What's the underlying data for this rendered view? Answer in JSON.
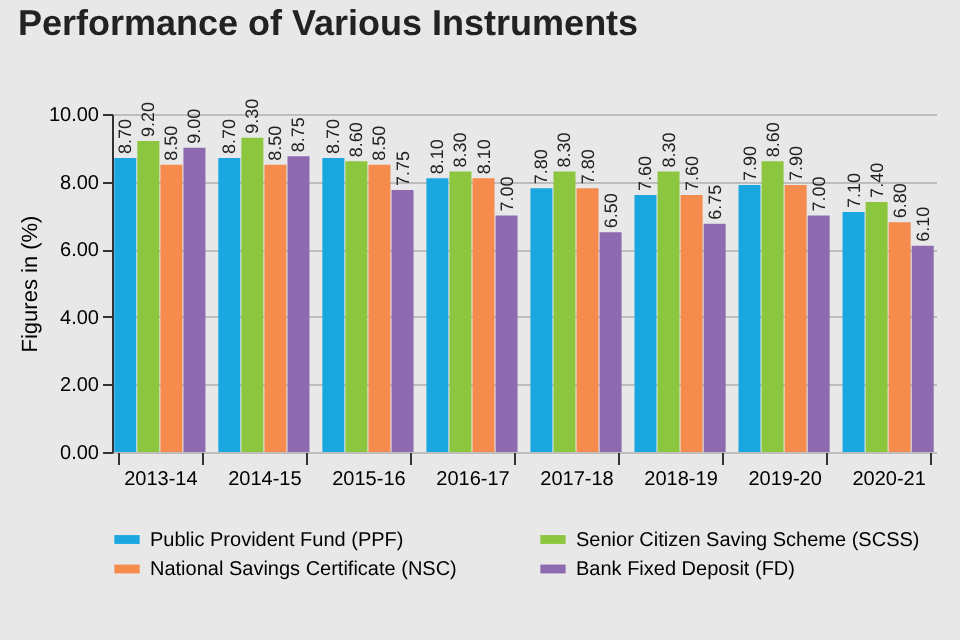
{
  "chart_data": {
    "type": "bar",
    "title": "Performance of Various Instruments",
    "ylabel": "Figures in (%)",
    "categories": [
      "2013-14",
      "2014-15",
      "2015-16",
      "2016-17",
      "2017-18",
      "2018-19",
      "2019-20",
      "2020-21"
    ],
    "series": [
      {
        "name": "Public Provident Fund (PPF)",
        "color": "#1aa7e0",
        "values": [
          8.7,
          8.7,
          8.7,
          8.1,
          7.8,
          7.6,
          7.9,
          7.1
        ],
        "value_labels": [
          "8.70",
          "8.70",
          "8.70",
          "8.10",
          "7.80",
          "7.60",
          "7.90",
          "7.10"
        ]
      },
      {
        "name": "Senior Citizen Saving Scheme (SCSS)",
        "color": "#8cc63f",
        "values": [
          9.2,
          9.3,
          8.6,
          8.3,
          8.3,
          8.3,
          8.6,
          7.4
        ],
        "value_labels": [
          "9.20",
          "9.30",
          "8.60",
          "8.30",
          "8.30",
          "8.30",
          "8.60",
          "7.40"
        ]
      },
      {
        "name": "National Savings Certificate (NSC)",
        "color": "#f58b4c",
        "values": [
          8.5,
          8.5,
          8.5,
          8.1,
          7.8,
          7.6,
          7.9,
          6.8
        ],
        "value_labels": [
          "8.50",
          "8.50",
          "8.50",
          "8.10",
          "7.80",
          "7.60",
          "7.90",
          "6.80"
        ]
      },
      {
        "name": "Bank Fixed Deposit (FD)",
        "color": "#8e6bb0",
        "values": [
          9.0,
          8.75,
          7.75,
          7.0,
          6.5,
          6.75,
          7.0,
          6.1
        ],
        "value_labels": [
          "9.00",
          "8.75",
          "7.75",
          "7.00",
          "6.50",
          "6.75",
          "7.00",
          "6.10"
        ]
      }
    ],
    "ylim": [
      0,
      10
    ],
    "yticks": [
      {
        "value": 0,
        "label": "0.00"
      },
      {
        "value": 2,
        "label": "2.00"
      },
      {
        "value": 4,
        "label": "4.00"
      },
      {
        "value": 6,
        "label": "6.00"
      },
      {
        "value": 8,
        "label": "8.00"
      },
      {
        "value": 10,
        "label": "10.00"
      }
    ],
    "grid": "y",
    "legend": "bottom"
  }
}
